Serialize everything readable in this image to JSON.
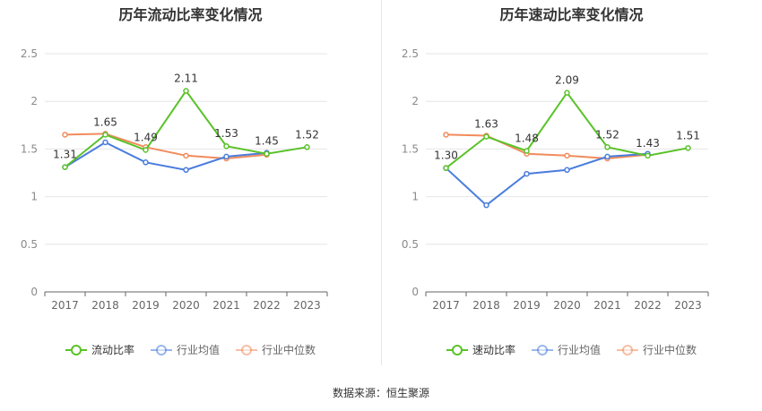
{
  "footer": {
    "source": "数据来源：恒生聚源"
  },
  "chart_data": [
    {
      "type": "line",
      "title": "历年流动比率变化情况",
      "categories": [
        "2017",
        "2018",
        "2019",
        "2020",
        "2021",
        "2022",
        "2023"
      ],
      "ylim": [
        0,
        2.5
      ],
      "yticks": [
        "0",
        "0.5",
        "1",
        "1.5",
        "2",
        "2.5"
      ],
      "grid": true,
      "legend_position": "bottom",
      "series": [
        {
          "name": "流动比率",
          "color": "#5ac229",
          "values": [
            1.31,
            1.65,
            1.49,
            2.11,
            1.53,
            1.45,
            1.52
          ],
          "labels": [
            "1.31",
            "1.65",
            "1.49",
            "2.11",
            "1.53",
            "1.45",
            "1.52"
          ]
        },
        {
          "name": "行业均值",
          "color": "#4a7ddc",
          "values": [
            1.31,
            1.57,
            1.36,
            1.28,
            1.42,
            1.46,
            null
          ]
        },
        {
          "name": "行业中位数",
          "color": "#f28b5c",
          "values": [
            1.65,
            1.66,
            1.52,
            1.43,
            1.4,
            1.44,
            null
          ]
        }
      ]
    },
    {
      "type": "line",
      "title": "历年速动比率变化情况",
      "categories": [
        "2017",
        "2018",
        "2019",
        "2020",
        "2021",
        "2022",
        "2023"
      ],
      "ylim": [
        0,
        2.5
      ],
      "yticks": [
        "0",
        "0.5",
        "1",
        "1.5",
        "2",
        "2.5"
      ],
      "grid": true,
      "legend_position": "bottom",
      "series": [
        {
          "name": "速动比率",
          "color": "#5ac229",
          "values": [
            1.3,
            1.63,
            1.48,
            2.09,
            1.52,
            1.43,
            1.51
          ],
          "labels": [
            "1.30",
            "1.63",
            "1.48",
            "2.09",
            "1.52",
            "1.43",
            "1.51"
          ]
        },
        {
          "name": "行业均值",
          "color": "#4a7ddc",
          "values": [
            1.3,
            0.91,
            1.24,
            1.28,
            1.42,
            1.45,
            null
          ]
        },
        {
          "name": "行业中位数",
          "color": "#f28b5c",
          "values": [
            1.65,
            1.64,
            1.45,
            1.43,
            1.4,
            1.44,
            null
          ]
        }
      ]
    }
  ]
}
